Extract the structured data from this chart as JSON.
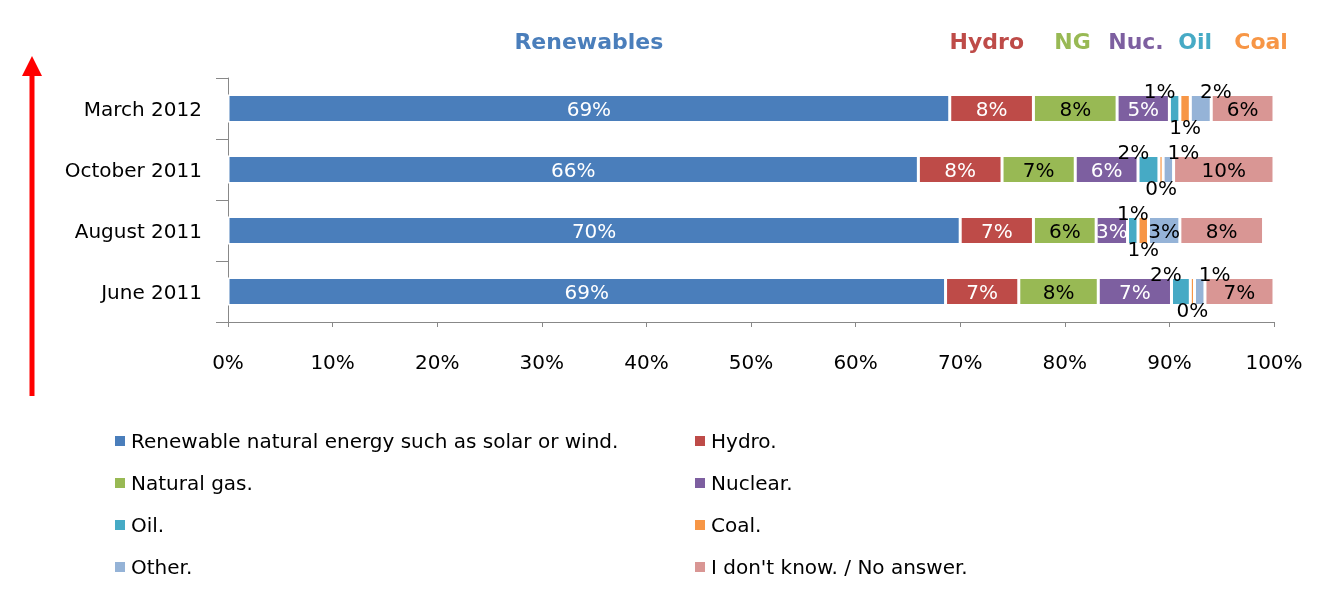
{
  "chart_data": {
    "type": "bar",
    "orientation": "horizontal",
    "stacked": true,
    "categories": [
      "March 2012",
      "October 2011",
      "August 2011",
      "June 2011"
    ],
    "xlim": [
      0,
      100
    ],
    "xticks": [
      {
        "value": 0,
        "label": "0%"
      },
      {
        "value": 10,
        "label": "10%"
      },
      {
        "value": 20,
        "label": "20%"
      },
      {
        "value": 30,
        "label": "30%"
      },
      {
        "value": 40,
        "label": "40%"
      },
      {
        "value": 50,
        "label": "50%"
      },
      {
        "value": 60,
        "label": "60%"
      },
      {
        "value": 70,
        "label": "70%"
      },
      {
        "value": 80,
        "label": "80%"
      },
      {
        "value": 90,
        "label": "90%"
      },
      {
        "value": 100,
        "label": "100%"
      }
    ],
    "grid": false,
    "legend": "bottom",
    "annotations": [
      "Renewables",
      "Hydro",
      "NG",
      "Nuc.",
      "Oil",
      "Coal"
    ],
    "series": [
      {
        "name": "Renewable natural energy such as solar or wind.",
        "color": "#4a7ebb",
        "values": [
          69,
          66,
          70,
          68.6
        ],
        "value_labels": [
          "69%",
          "66%",
          "70%",
          "69%"
        ]
      },
      {
        "name": "Hydro.",
        "color": "#be4b48",
        "values": [
          8,
          8,
          7,
          7
        ],
        "value_labels": [
          "8%",
          "8%",
          "7%",
          "7%"
        ]
      },
      {
        "name": "Natural gas.",
        "color": "#98b954",
        "values": [
          8,
          7,
          6,
          7.6
        ],
        "value_labels": [
          "8%",
          "7%",
          "6%",
          "8%"
        ]
      },
      {
        "name": "Nuclear.",
        "color": "#7d5fa0",
        "values": [
          5,
          6,
          3,
          7
        ],
        "value_labels": [
          "5%",
          "6%",
          "3%",
          "7%"
        ]
      },
      {
        "name": "Oil.",
        "color": "#46aac5",
        "values": [
          1,
          2,
          1,
          1.8
        ],
        "value_labels": [
          "1%",
          "2%",
          "1%",
          "2%"
        ]
      },
      {
        "name": "Coal.",
        "color": "#f79646",
        "values": [
          1,
          0.4,
          1,
          0.4
        ],
        "value_labels": [
          "1%",
          "0%",
          "1%",
          "0%"
        ]
      },
      {
        "name": "Other.",
        "color": "#95b3d7",
        "values": [
          2,
          1,
          3,
          1
        ],
        "value_labels": [
          "2%",
          "1%",
          "3%",
          "1%"
        ]
      },
      {
        "name": "I don't know. / No answer.",
        "color": "#d99694",
        "values": [
          6,
          9.6,
          8,
          6.6
        ],
        "value_labels": [
          "6%",
          "10%",
          "8%",
          "7%"
        ]
      }
    ]
  }
}
